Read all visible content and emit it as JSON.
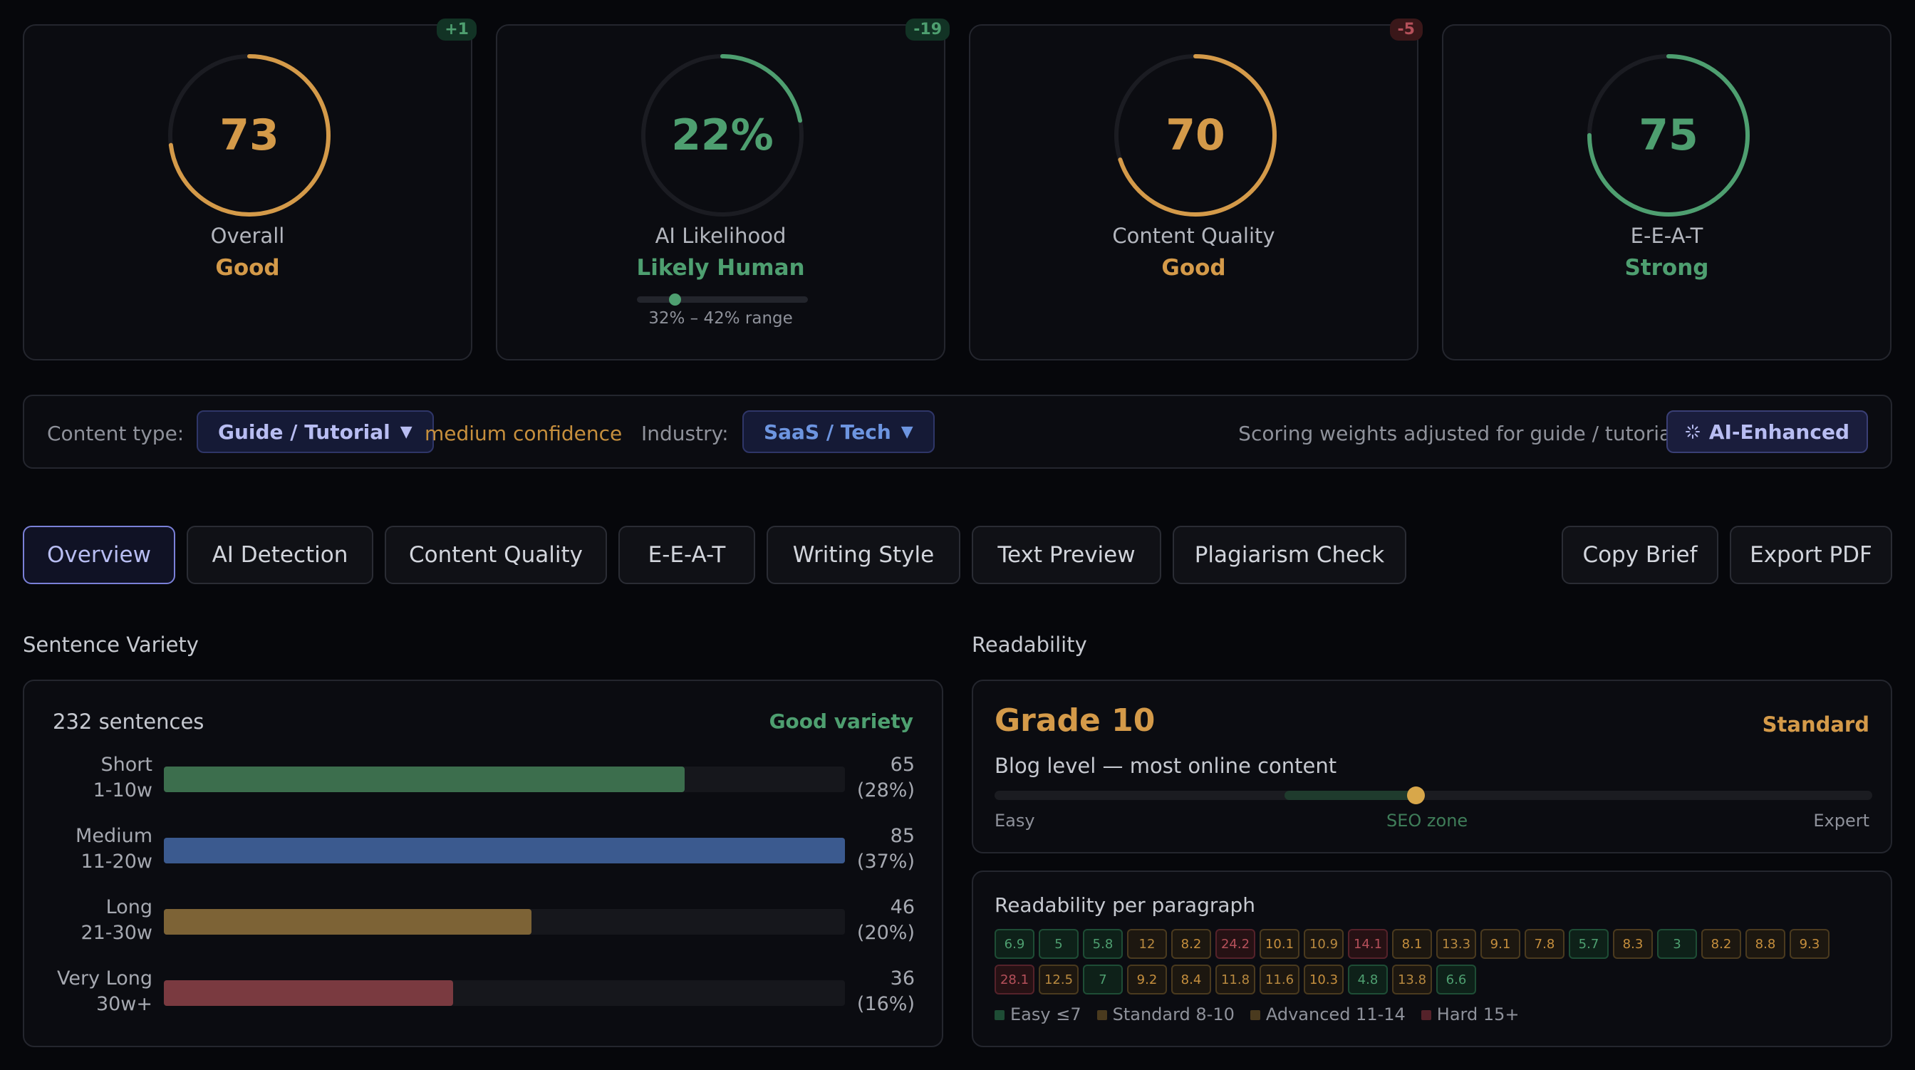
{
  "scores": [
    {
      "value": "73",
      "percent": 73,
      "label": "Overall",
      "status": "Good",
      "delta": "+1",
      "color": "#d49a49",
      "delta_type": "pos"
    },
    {
      "value": "22%",
      "percent": 22,
      "label": "AI Likelihood",
      "status": "Likely Human",
      "delta": "-19",
      "color": "#4e9f70",
      "delta_type": "pos",
      "range_text": "32% – 42% range"
    },
    {
      "value": "70",
      "percent": 70,
      "label": "Content Quality",
      "status": "Good",
      "delta": "-5",
      "color": "#d49a49",
      "delta_type": "neg"
    },
    {
      "value": "75",
      "percent": 75,
      "label": "E-E-A-T",
      "status": "Strong",
      "color": "#4e9f70"
    }
  ],
  "ai_range": {
    "position": 0.22
  },
  "content_bar": {
    "type_label": "Content type:",
    "type_value": "Guide / Tutorial",
    "confidence": "medium confidence",
    "industry_label": "Industry:",
    "industry_value": "SaaS / Tech",
    "note": "Scoring weights adjusted for guide / tutorial",
    "ai_badge": "AI-Enhanced",
    "caret": "▼"
  },
  "tabs": [
    "Overview",
    "AI Detection",
    "Content Quality",
    "E-E-A-T",
    "Writing Style",
    "Text Preview",
    "Plagiarism Check"
  ],
  "actions": [
    "Copy Brief",
    "Export PDF"
  ],
  "sentence_variety": {
    "title": "Sentence Variety",
    "count": "232 sentences",
    "quality": "Good variety",
    "rows": [
      {
        "name": "Short",
        "range": "1-10w",
        "count": "65",
        "pct": "(28%)",
        "fraction": 0.765,
        "color": "#3c6e4d"
      },
      {
        "name": "Medium",
        "range": "11-20w",
        "count": "85",
        "pct": "(37%)",
        "fraction": 1.0,
        "color": "#3b5a8f"
      },
      {
        "name": "Long",
        "range": "21-30w",
        "count": "46",
        "pct": "(20%)",
        "fraction": 0.54,
        "color": "#7d6336"
      },
      {
        "name": "Very Long",
        "range": "30w+",
        "count": "36",
        "pct": "(16%)",
        "fraction": 0.425,
        "color": "#7a3a40"
      }
    ]
  },
  "readability": {
    "title": "Readability",
    "grade": "Grade 10",
    "level": "Standard",
    "description": "Blog level — most online content",
    "scale": {
      "easy": "Easy",
      "zone": "SEO zone",
      "expert": "Expert",
      "position": 0.48,
      "zone_start": 0.33,
      "zone_end": 0.48
    },
    "per_paragraph_title": "Readability per paragraph",
    "paragraphs": [
      [
        "6.9",
        "easy"
      ],
      [
        "5",
        "easy"
      ],
      [
        "5.8",
        "easy"
      ],
      [
        "12",
        "adv"
      ],
      [
        "8.2",
        "std"
      ],
      [
        "24.2",
        "hard"
      ],
      [
        "10.1",
        "std"
      ],
      [
        "10.9",
        "adv"
      ],
      [
        "14.1",
        "hard"
      ],
      [
        "8.1",
        "std"
      ],
      [
        "13.3",
        "adv"
      ],
      [
        "9.1",
        "std"
      ],
      [
        "7.8",
        "std"
      ],
      [
        "5.7",
        "easy"
      ],
      [
        "8.3",
        "std"
      ],
      [
        "3",
        "easy"
      ],
      [
        "8.2",
        "std"
      ],
      [
        "8.8",
        "std"
      ],
      [
        "9.3",
        "std"
      ],
      [
        "28.1",
        "hard"
      ],
      [
        "12.5",
        "adv"
      ],
      [
        "7",
        "easy"
      ],
      [
        "9.2",
        "std"
      ],
      [
        "8.4",
        "std"
      ],
      [
        "11.8",
        "adv"
      ],
      [
        "11.6",
        "adv"
      ],
      [
        "10.3",
        "std"
      ],
      [
        "4.8",
        "easy"
      ],
      [
        "13.8",
        "adv"
      ],
      [
        "6.6",
        "easy"
      ]
    ],
    "legend": [
      {
        "label": "Easy ≤7",
        "color": "#1e4d35"
      },
      {
        "label": "Standard 8-10",
        "color": "#4a3a1e"
      },
      {
        "label": "Advanced 11-14",
        "color": "#4a3a1e"
      },
      {
        "label": "Hard 15+",
        "color": "#55222a"
      }
    ]
  }
}
